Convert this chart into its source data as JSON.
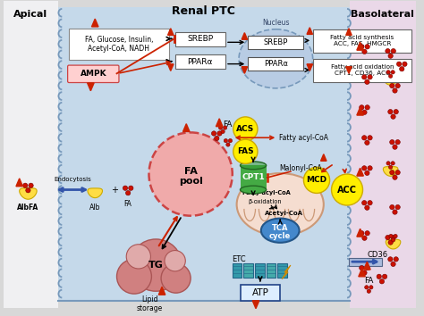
{
  "title_center": "Renal PTC",
  "title_left": "Apical",
  "title_right": "Basolateral",
  "bg_cell": "#c5d9ea",
  "bg_left": "#f0f0f0",
  "bg_right": "#ead8e8",
  "arrow_red": "#cc2200",
  "arrow_black": "#111111",
  "arrow_blue": "#3355aa",
  "nucleus_color": "#b8cce4",
  "fa_pool_color": "#f0aaaa",
  "tg_color": "#d08888",
  "acs_color": "#ffee00",
  "fas_color": "#ffee00",
  "mcd_color": "#ffee00",
  "acc_color": "#ffee00",
  "cpt1_color": "#44aa44",
  "tca_color": "#4488cc",
  "membrane_color": "#7799bb",
  "mito_color": "#f5ddd0"
}
